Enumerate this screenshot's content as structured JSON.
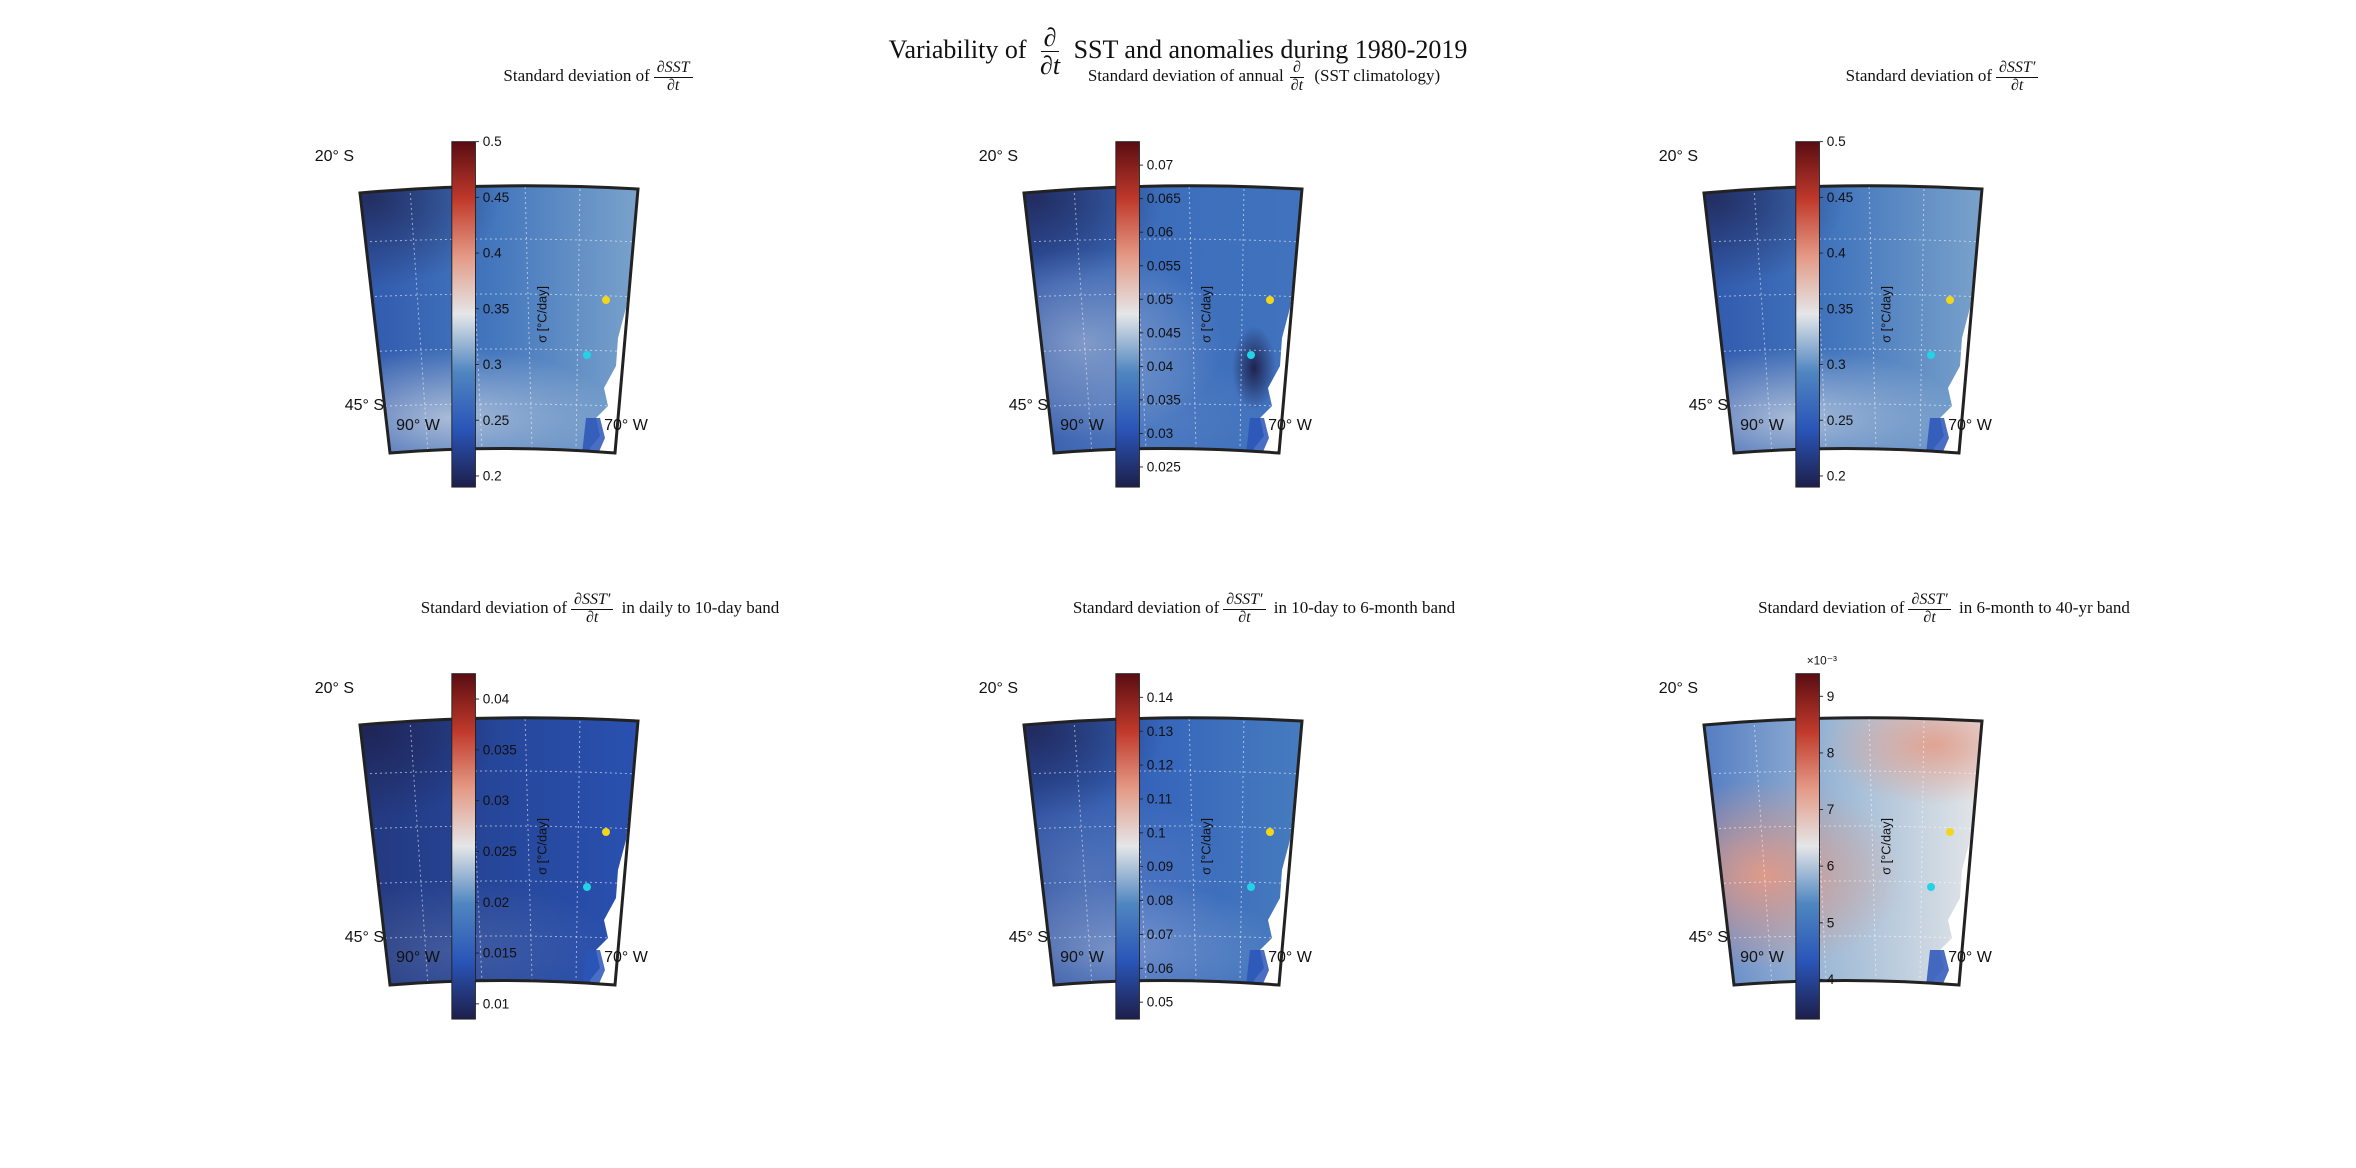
{
  "figure": {
    "title_pre": "Variability of",
    "title_frac_num": "∂",
    "title_frac_den": "∂t",
    "title_post": "SST and anomalies during 1980-2019"
  },
  "map_labels": {
    "lat_top": "20° S",
    "lat_bottom": "45° S",
    "lon_left": "90° W",
    "lon_right": "70° W"
  },
  "colorbar_label": "σ [°C/day]",
  "colors": {
    "dark_navy": "#1d1f4a",
    "blue": "#2a55b8",
    "mid_blue": "#4f86c0",
    "light_gray": "#e4e6e8",
    "salmon": "#e49a86",
    "red": "#c0392b",
    "dark_red": "#5a0d12",
    "yellow_marker": "#f2d61c",
    "cyan_marker": "#22d3e6"
  },
  "panels": [
    {
      "title_pre": "Standard deviation of",
      "frac_num": "∂SST",
      "frac_den": "∂t",
      "title_post": "",
      "colorbar": {
        "min": 0.19,
        "max": 0.5,
        "ticks": [
          "0.2",
          "0.25",
          "0.3",
          "0.35",
          "0.4",
          "0.45",
          "0.5"
        ],
        "exponent": ""
      }
    },
    {
      "title_pre": "Standard deviation of annual",
      "frac_num": "∂",
      "frac_den": "∂t",
      "title_post": "(SST climatology)",
      "colorbar": {
        "min": 0.022,
        "max": 0.0735,
        "ticks": [
          "0.025",
          "0.03",
          "0.035",
          "0.04",
          "0.045",
          "0.05",
          "0.055",
          "0.06",
          "0.065",
          "0.07"
        ],
        "exponent": ""
      }
    },
    {
      "title_pre": "Standard deviation of",
      "frac_num": "∂SST′",
      "frac_den": "∂t",
      "title_post": "",
      "colorbar": {
        "min": 0.19,
        "max": 0.5,
        "ticks": [
          "0.2",
          "0.25",
          "0.3",
          "0.35",
          "0.4",
          "0.45",
          "0.5"
        ],
        "exponent": ""
      }
    },
    {
      "title_pre": "Standard deviation of",
      "frac_num": "∂SST′",
      "frac_den": "∂t",
      "title_post": "in daily to 10-day band",
      "colorbar": {
        "min": 0.0085,
        "max": 0.0425,
        "ticks": [
          "0.01",
          "0.015",
          "0.02",
          "0.025",
          "0.03",
          "0.035",
          "0.04"
        ],
        "exponent": ""
      }
    },
    {
      "title_pre": "Standard deviation of",
      "frac_num": "∂SST′",
      "frac_den": "∂t",
      "title_post": "in 10-day to 6-month band",
      "colorbar": {
        "min": 0.045,
        "max": 0.147,
        "ticks": [
          "0.05",
          "0.06",
          "0.07",
          "0.08",
          "0.09",
          "0.1",
          "0.11",
          "0.12",
          "0.13",
          "0.14"
        ],
        "exponent": ""
      }
    },
    {
      "title_pre": "Standard deviation of",
      "frac_num": "∂SST′",
      "frac_den": "∂t",
      "title_post": "in 6-month to 40-yr band",
      "colorbar": {
        "min": 3.3,
        "max": 9.4,
        "ticks": [
          "4",
          "5",
          "6",
          "7",
          "8",
          "9"
        ],
        "exponent": "×10⁻³"
      }
    }
  ]
}
